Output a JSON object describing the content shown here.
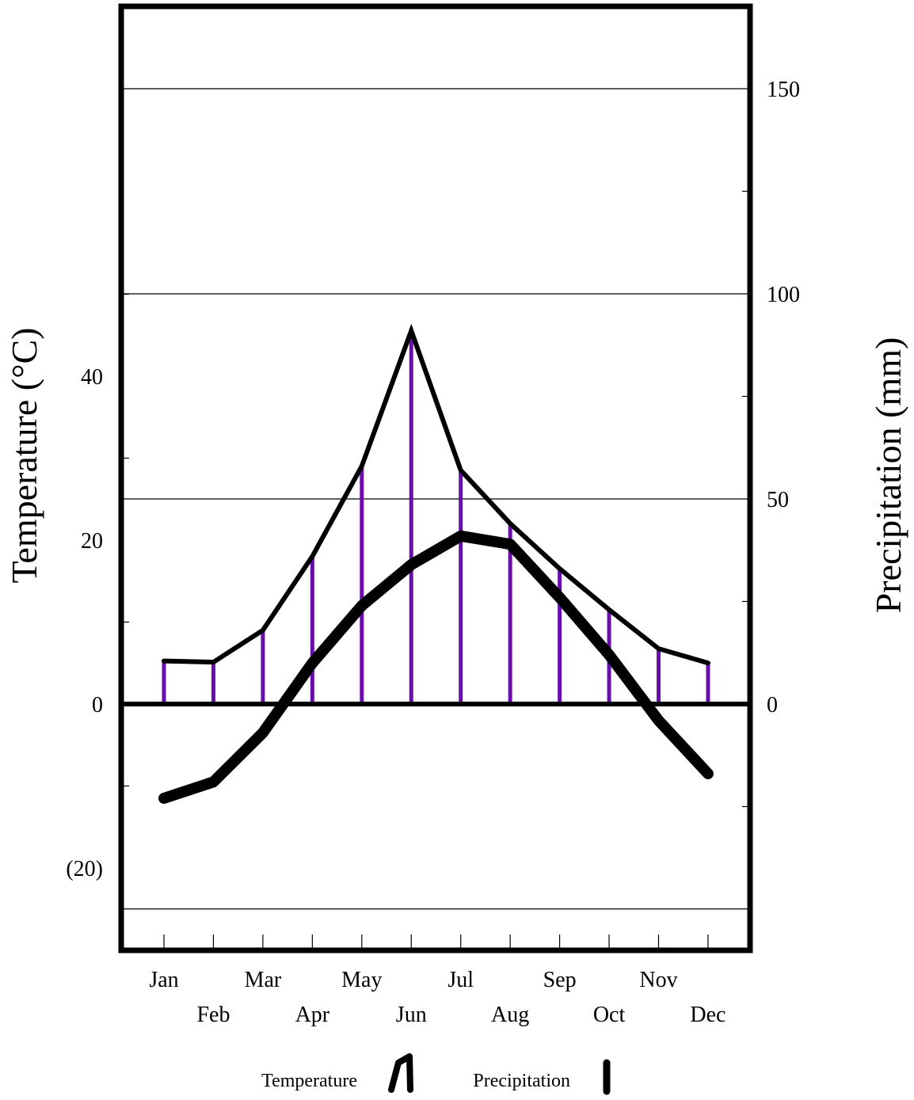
{
  "chart_data": {
    "type": "line",
    "title": "",
    "categories": [
      "Jan",
      "Feb",
      "Mar",
      "Apr",
      "May",
      "Jun",
      "Jul",
      "Aug",
      "Sep",
      "Oct",
      "Nov",
      "Dec"
    ],
    "ylabel_left": "Temperature (°C)",
    "ylabel_right": "Precipitation (mm)",
    "left_ticks": [
      "40",
      "20",
      "0",
      "(20)"
    ],
    "right_ticks": [
      "150",
      "100",
      "50",
      "0"
    ],
    "temperature_range": [
      -30,
      85
    ],
    "precipitation_range": [
      -60,
      170
    ],
    "grid": true,
    "series": [
      {
        "name": "Temperature",
        "axis": "left",
        "values": [
          -11.5,
          -9.5,
          -3.5,
          5,
          12,
          17,
          20.5,
          19.5,
          13,
          6,
          -2,
          -8.5
        ]
      },
      {
        "name": "Precipitation",
        "axis": "right",
        "values": [
          10.5,
          10.2,
          18,
          36,
          58,
          91,
          57,
          44,
          33,
          23,
          13.5,
          10
        ]
      }
    ],
    "legend": {
      "position": "bottom",
      "entries": [
        "Temperature",
        "Precipitation"
      ]
    },
    "colors": {
      "precip_bars": "#6a0dad",
      "lines": "#000000"
    }
  }
}
